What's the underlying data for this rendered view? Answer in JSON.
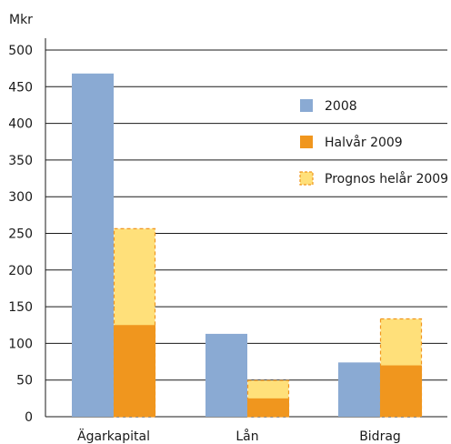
{
  "chart_data": {
    "type": "bar",
    "ylabel": "Mkr",
    "ylim": [
      0,
      500
    ],
    "yticks": [
      0,
      50,
      100,
      150,
      200,
      250,
      300,
      350,
      400,
      450,
      500
    ],
    "grid": true,
    "legend_position": "right",
    "categories": [
      "Ägarkapital",
      "Lån",
      "Bidrag"
    ],
    "series": [
      {
        "name": "2008",
        "values": [
          468,
          113,
          74
        ],
        "color": "#8aaad3",
        "style": "solid"
      },
      {
        "name": "Halvår 2009",
        "values": [
          125,
          25,
          70
        ],
        "color": "#f0961e",
        "style": "solid"
      },
      {
        "name": "Prognos helår 2009",
        "values": [
          257,
          50,
          134
        ],
        "color": "#ffe07a",
        "border_color": "#f0961e",
        "style": "dashed"
      }
    ]
  }
}
